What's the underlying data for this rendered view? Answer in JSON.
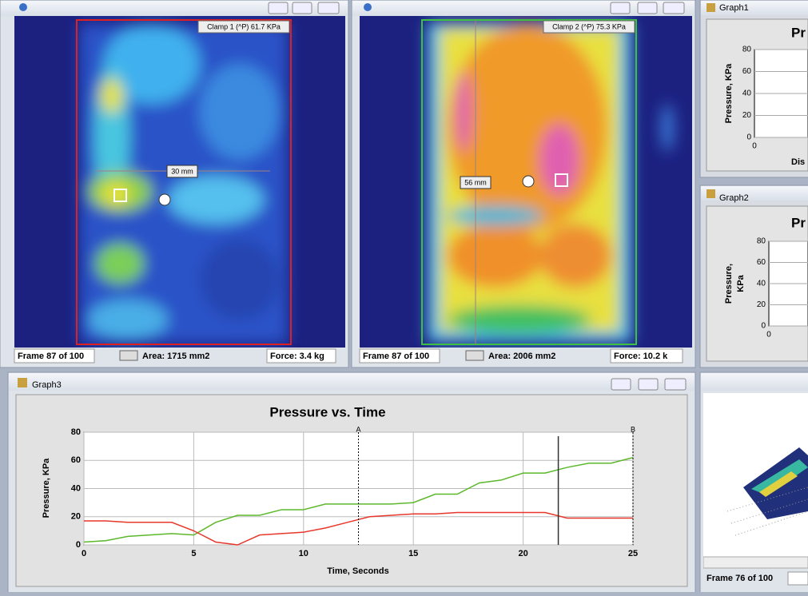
{
  "clamp1": {
    "label": "Clamp 1 (^P) 61.7 KPa",
    "ruler": "30 mm",
    "status": [
      "Frame 87 of 100",
      "Area: 1715 mm2",
      "Force: 3.4 kg"
    ]
  },
  "clamp2": {
    "label": "Clamp 2 (^P) 75.3 KPa",
    "ruler": "56 mm",
    "status": [
      "Frame 87 of 100",
      "Area: 2006 mm2",
      "Force: 10.2 k"
    ]
  },
  "graph1": {
    "window_title": "Graph1",
    "title": "Pr",
    "y_label": "Pressure, KPa",
    "x_label": "Dis",
    "ylim": [
      0,
      80
    ],
    "yticks": [
      0,
      20,
      40,
      60,
      80
    ],
    "xticks": [
      0
    ]
  },
  "graph2": {
    "window_title": "Graph2",
    "title": "Pr",
    "y_label": [
      "Pressure,",
      "KPa"
    ],
    "ylim": [
      0,
      80
    ],
    "yticks": [
      0,
      20,
      40,
      60,
      80
    ],
    "xticks": [
      0
    ]
  },
  "graph3": {
    "window_title": "Graph3",
    "chart_data": {
      "type": "line",
      "title": "Pressure vs. Time",
      "x_label": "Time, Seconds",
      "y_label": "Pressure, KPa",
      "x": [
        0,
        1,
        2,
        3,
        4,
        5,
        6,
        7,
        8,
        9,
        10,
        11,
        12,
        13,
        14,
        15,
        16,
        17,
        18,
        19,
        20,
        21,
        22,
        23,
        24,
        25
      ],
      "series": [
        {
          "color": "#5cb82a",
          "values": [
            2,
            3,
            6,
            7,
            8,
            7,
            16,
            21,
            21,
            25,
            25,
            29,
            29,
            29,
            29,
            30,
            36,
            36,
            44,
            46,
            51,
            51,
            55,
            58,
            58,
            62
          ]
        },
        {
          "color": "#e8372b",
          "values": [
            17,
            17,
            16,
            16,
            16,
            10,
            2,
            0,
            7,
            8,
            9,
            12,
            16,
            20,
            21,
            22,
            22,
            23,
            23,
            23,
            23,
            23,
            19,
            19,
            19,
            19
          ]
        }
      ],
      "xlim": [
        0,
        25
      ],
      "ylim": [
        0,
        80
      ],
      "xticks": [
        0,
        5,
        10,
        15,
        20,
        25
      ],
      "yticks": [
        0,
        20,
        40,
        60,
        80
      ],
      "grid": true,
      "markers": [
        {
          "label": "A",
          "x": 12.5
        },
        {
          "label": "B",
          "x": 25
        }
      ],
      "cursor_x": 21.6
    }
  },
  "view3d": {
    "status": "Frame 76 of 100"
  }
}
